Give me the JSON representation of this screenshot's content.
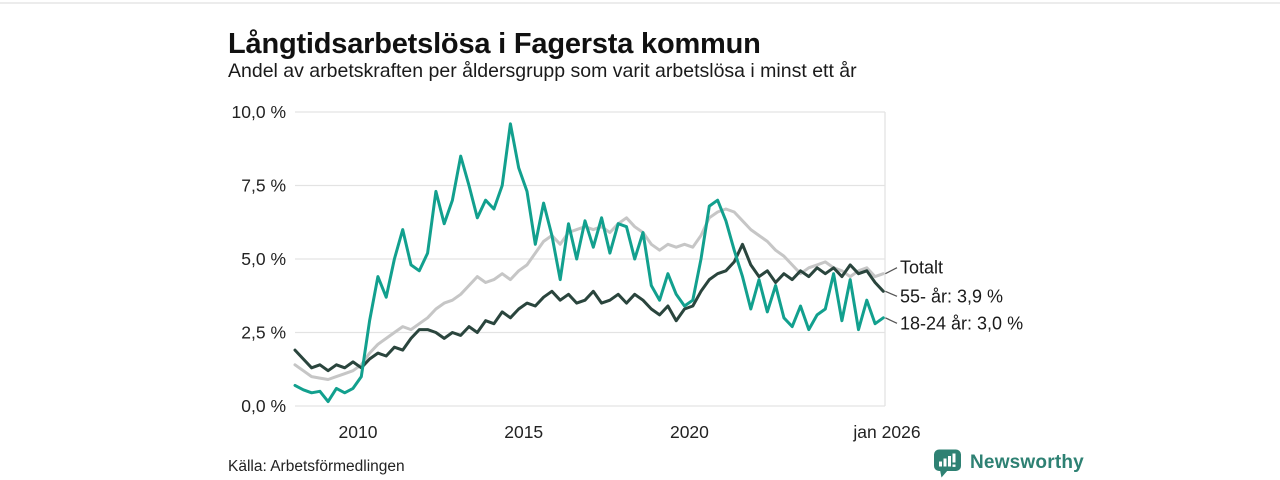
{
  "header": {
    "title": "Långtidsarbetslösa i Fagersta kommun",
    "subtitle": "Andel av arbetskraften per åldersgrupp som varit arbetslösa i minst ett år"
  },
  "footer": {
    "source": "Källa: Arbetsförmedlingen",
    "brand": "Newsworthy"
  },
  "colors": {
    "totalt": "#c6c6c6",
    "age_55": "#2a453d",
    "age_18_24": "#12a08e",
    "grid": "#e3e3e3",
    "axis_text": "#222222",
    "label_text": "#1a1a1a",
    "leader": "#555555",
    "brand": "#2e8173"
  },
  "chart_data": {
    "type": "line",
    "title": "Långtidsarbetslösa i Fagersta kommun",
    "subtitle": "Andel av arbetskraften per åldersgrupp som varit arbetslösa i minst ett år",
    "grid": true,
    "legend_position": "right-end-labels",
    "ylim": [
      0,
      10
    ],
    "xlim": [
      2008.1,
      2025.9
    ],
    "y_ticks": [
      {
        "label": "0,0 %",
        "value": 0
      },
      {
        "label": "2,5 %",
        "value": 2.5
      },
      {
        "label": "5,0 %",
        "value": 5
      },
      {
        "label": "7,5 %",
        "value": 7.5
      },
      {
        "label": "10,0 %",
        "value": 10
      }
    ],
    "x_ticks": [
      {
        "label": "2010",
        "value": 2010
      },
      {
        "label": "2015",
        "value": 2015
      },
      {
        "label": "2020",
        "value": 2020
      },
      {
        "label": "jan 2026",
        "value": 2026
      }
    ],
    "x": [
      2008.1,
      2008.35,
      2008.6,
      2008.85,
      2009.1,
      2009.35,
      2009.6,
      2009.85,
      2010.1,
      2010.35,
      2010.6,
      2010.85,
      2011.1,
      2011.35,
      2011.6,
      2011.85,
      2012.1,
      2012.35,
      2012.6,
      2012.85,
      2013.1,
      2013.35,
      2013.6,
      2013.85,
      2014.1,
      2014.35,
      2014.6,
      2014.85,
      2015.1,
      2015.35,
      2015.6,
      2015.85,
      2016.1,
      2016.35,
      2016.6,
      2016.85,
      2017.1,
      2017.35,
      2017.6,
      2017.85,
      2018.1,
      2018.35,
      2018.6,
      2018.85,
      2019.1,
      2019.35,
      2019.6,
      2019.85,
      2020.1,
      2020.35,
      2020.6,
      2020.85,
      2021.1,
      2021.35,
      2021.6,
      2021.85,
      2022.1,
      2022.35,
      2022.6,
      2022.85,
      2023.1,
      2023.35,
      2023.6,
      2023.85,
      2024.1,
      2024.35,
      2024.6,
      2024.85,
      2025.1,
      2025.35,
      2025.6,
      2025.85
    ],
    "series": [
      {
        "name": "Totalt",
        "end_label": "Totalt",
        "color_key": "totalt",
        "values": [
          1.4,
          1.2,
          1.0,
          0.95,
          0.9,
          1.0,
          1.1,
          1.2,
          1.4,
          1.8,
          2.1,
          2.3,
          2.5,
          2.7,
          2.6,
          2.8,
          3.0,
          3.3,
          3.5,
          3.6,
          3.8,
          4.1,
          4.4,
          4.2,
          4.3,
          4.5,
          4.3,
          4.6,
          4.8,
          5.2,
          5.6,
          5.8,
          5.5,
          5.9,
          6.0,
          6.1,
          6.0,
          6.1,
          5.9,
          6.2,
          6.4,
          6.1,
          5.9,
          5.5,
          5.3,
          5.5,
          5.4,
          5.5,
          5.4,
          5.8,
          6.4,
          6.6,
          6.7,
          6.6,
          6.3,
          6.0,
          5.8,
          5.6,
          5.3,
          5.1,
          4.8,
          4.5,
          4.7,
          4.8,
          4.9,
          4.7,
          4.6,
          4.4,
          4.6,
          4.7,
          4.4,
          4.5
        ]
      },
      {
        "name": "55- år",
        "end_label": "55- år: 3,9 %",
        "color_key": "age_55",
        "values": [
          1.9,
          1.6,
          1.3,
          1.4,
          1.2,
          1.4,
          1.3,
          1.5,
          1.3,
          1.6,
          1.8,
          1.7,
          2.0,
          1.9,
          2.3,
          2.6,
          2.6,
          2.5,
          2.3,
          2.5,
          2.4,
          2.7,
          2.5,
          2.9,
          2.8,
          3.2,
          3.0,
          3.3,
          3.5,
          3.4,
          3.7,
          3.9,
          3.6,
          3.8,
          3.5,
          3.6,
          3.9,
          3.5,
          3.6,
          3.8,
          3.5,
          3.8,
          3.6,
          3.3,
          3.1,
          3.4,
          2.9,
          3.3,
          3.4,
          3.9,
          4.3,
          4.5,
          4.6,
          4.9,
          5.5,
          4.8,
          4.4,
          4.6,
          4.2,
          4.5,
          4.3,
          4.6,
          4.4,
          4.7,
          4.5,
          4.7,
          4.4,
          4.8,
          4.5,
          4.6,
          4.2,
          3.9
        ]
      },
      {
        "name": "18-24 år",
        "end_label": "18-24 år: 3,0 %",
        "color_key": "age_18_24",
        "values": [
          0.7,
          0.55,
          0.45,
          0.5,
          0.15,
          0.6,
          0.45,
          0.6,
          1.0,
          2.9,
          4.4,
          3.7,
          5.0,
          6.0,
          4.8,
          4.6,
          5.2,
          7.3,
          6.2,
          7.0,
          8.5,
          7.5,
          6.4,
          7.0,
          6.7,
          7.5,
          9.6,
          8.1,
          7.3,
          5.5,
          6.9,
          5.8,
          4.3,
          6.2,
          5.0,
          6.3,
          5.4,
          6.4,
          5.2,
          6.2,
          6.1,
          5.0,
          5.9,
          4.1,
          3.6,
          4.5,
          3.8,
          3.4,
          3.6,
          5.0,
          6.8,
          7.0,
          6.3,
          5.3,
          4.4,
          3.3,
          4.3,
          3.2,
          4.1,
          3.0,
          2.7,
          3.4,
          2.6,
          3.1,
          3.3,
          4.5,
          2.9,
          4.3,
          2.6,
          3.6,
          2.8,
          3.0
        ]
      }
    ]
  }
}
